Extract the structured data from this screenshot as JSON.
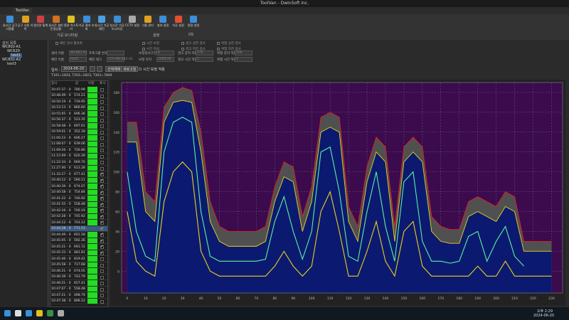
{
  "window": {
    "title": "ToolVan - DwinSoft Inc.",
    "tab": "ToolVan"
  },
  "toolbar": {
    "buttons": [
      "실시간 공구 사용률",
      "공구 사용 이력",
      "생산량 통계",
      "실시간 설비 운영상황",
      "알람 히스토리",
      "가공 결과 조회",
      "실시간 가공 패턴",
      "실시간 가공 모니터링",
      "CCTV 설정",
      "그룹 관리",
      "설비 설정",
      "가공 설정",
      "알람 설정"
    ],
    "groups": [
      "가공 모니터링",
      "설정",
      "OS"
    ]
  },
  "tree": {
    "title": "설비 목록",
    "items": [
      "WC802-A1",
      "WC620",
      "test1",
      "WC802-A2",
      "test3"
    ]
  },
  "form": {
    "checks": [
      "패턴 검사 활성화",
      "시간 보정",
      "경고 상한 검사",
      "위험 상한 검사",
      "시간 검사",
      "경고 하한 검사",
      "위험 하한 검사"
    ],
    "fields": [
      {
        "label": "설비 이름",
        "value": "WC802-A1"
      },
      {
        "label": "프로그램 번호"
      },
      {
        "label": "패턴 이름",
        "value": "test1"
      },
      {
        "label": "패턴 태그",
        "value": "CCH-WC802-A1"
      },
      {
        "label": "보정검사구간",
        "value": "0"
      },
      {
        "label": "경고 감지 하한",
        "value": "170"
      },
      {
        "label": "위험 감지 하한",
        "value": "200"
      },
      {
        "label": "보정 유지",
        "value": "1000.00"
      },
      {
        "label": "경고 시간 하한",
        "value": "1"
      },
      {
        "label": "위험 시간 하한",
        "value": "1"
      }
    ]
  },
  "filter": {
    "date_label": "일자 :",
    "date": "2024-06-20",
    "buttons": [
      "선택해제",
      "새로고침"
    ],
    "option": "시간 보정 적용"
  },
  "info": "T101=1824, T202=1823, T303=7849",
  "table": {
    "headers": [
      "일시",
      "값",
      "보정",
      "표시"
    ],
    "check_mark": "✓",
    "checked_rows": [
      14,
      15,
      16,
      17,
      18,
      19,
      20,
      21,
      22,
      23,
      24,
      25,
      26,
      27
    ],
    "rows": [
      [
        "10:47:37 - 0",
        "780.99"
      ],
      [
        "10:48:49 - 0",
        "574.21"
      ],
      [
        "10:50:19 - 0",
        "719.95"
      ],
      [
        "10:53:13 - 0",
        "866.60"
      ],
      [
        "10:55:05 - 0",
        "696.36"
      ],
      [
        "10:56:37 - 0",
        "523.35"
      ],
      [
        "10:58:48 - 0",
        "697.61"
      ],
      [
        "10:59:01 - 0",
        "352.18"
      ],
      [
        "11:00:23 - 0",
        "606.27"
      ],
      [
        "11:08:07 - 0",
        "639.06"
      ],
      [
        "11:09:26 - 0",
        "726.86"
      ],
      [
        "11:15:09 - 0",
        "620.39"
      ],
      [
        "11:22:33 - 0",
        "669.70"
      ],
      [
        "11:27:40 - 0",
        "613.28"
      ],
      [
        "11:32:27 - 0",
        "677.41"
      ],
      [
        "10:40:12 - 0",
        "590.11"
      ],
      [
        "10:40:39 - 0",
        "674.07"
      ],
      [
        "10:40:58 - 0",
        "754.84"
      ],
      [
        "10:41:22 - 0",
        "746.92"
      ],
      [
        "10:41:55 - 0",
        "558.48"
      ],
      [
        "10:42:16 - 0",
        "700.19"
      ],
      [
        "10:42:28 - 0",
        "745.92"
      ],
      [
        "10:44:12 - 0",
        "703.12"
      ],
      [
        "10:44:28 - 0",
        "771.53"
      ],
      [
        "10:44:49 - 0",
        "601.58"
      ],
      [
        "10:45:05 - 0",
        "592.36"
      ],
      [
        "10:45:21 - 0",
        "691.72"
      ],
      [
        "10:45:33 - 0",
        "481.81"
      ],
      [
        "10:45:46 - 0",
        "819.42"
      ],
      [
        "10:45:58 - 0",
        "717.68"
      ],
      [
        "10:46:21 - 0",
        "674.05"
      ],
      [
        "10:46:39 - 0",
        "743.79"
      ],
      [
        "10:46:51 - 0",
        "657.41"
      ],
      [
        "10:47:07 - 0",
        "558.48"
      ],
      [
        "10:47:21 - 0",
        "498.79"
      ],
      [
        "10:47:38 - 0",
        "896.12"
      ]
    ]
  },
  "chart_data": {
    "type": "line",
    "background": "#3b0b4e",
    "grid": true,
    "x": [
      0,
      5,
      10,
      15,
      20,
      25,
      30,
      35,
      40,
      45,
      50,
      55,
      60,
      65,
      70,
      75,
      80,
      85,
      90,
      95,
      100,
      105,
      110,
      115,
      120,
      125,
      130,
      135,
      140,
      145,
      150,
      155,
      160,
      165,
      170,
      175,
      180,
      185,
      190,
      195,
      200,
      205,
      210,
      215,
      220,
      225,
      230
    ],
    "xlim": [
      -3,
      236
    ],
    "xticks": [
      0,
      10,
      20,
      30,
      40,
      50,
      60,
      70,
      80,
      90,
      100,
      110,
      120,
      130,
      140,
      150,
      160,
      170,
      180,
      190,
      200,
      210,
      220,
      230
    ],
    "ylim": [
      -22,
      190
    ],
    "yticks": [
      0,
      20,
      40,
      60,
      80,
      100,
      120,
      140,
      160,
      180
    ],
    "series": [
      {
        "color": "#e02020",
        "fill": "#505050",
        "values": [
          150,
          150,
          80,
          70,
          165,
          180,
          185,
          182,
          140,
          70,
          45,
          40,
          40,
          40,
          40,
          45,
          85,
          110,
          105,
          55,
          85,
          155,
          160,
          155,
          65,
          45,
          105,
          135,
          125,
          45,
          125,
          135,
          125,
          55,
          45,
          42,
          42,
          70,
          75,
          70,
          65,
          80,
          75,
          30,
          30,
          30,
          30
        ]
      },
      {
        "color": "#e8d020",
        "fill": "#0b1a70",
        "values": [
          130,
          130,
          60,
          50,
          150,
          170,
          172,
          170,
          120,
          50,
          30,
          25,
          25,
          25,
          25,
          30,
          70,
          95,
          90,
          40,
          70,
          140,
          145,
          140,
          50,
          30,
          90,
          120,
          110,
          30,
          110,
          120,
          110,
          40,
          30,
          28,
          28,
          55,
          60,
          55,
          50,
          65,
          60,
          20,
          20,
          20,
          20
        ]
      },
      {
        "color": "#5cf0a0",
        "values": [
          100,
          40,
          15,
          10,
          120,
          150,
          155,
          150,
          60,
          15,
          10,
          10,
          10,
          10,
          10,
          12,
          50,
          75,
          40,
          12,
          40,
          120,
          125,
          80,
          15,
          10,
          60,
          100,
          45,
          10,
          90,
          100,
          30,
          10,
          10,
          8,
          10,
          35,
          40,
          10,
          30,
          45,
          15,
          5,
          null,
          null,
          null
        ]
      },
      {
        "color": "#e8d020",
        "values": [
          60,
          10,
          0,
          -5,
          70,
          100,
          110,
          100,
          20,
          0,
          -5,
          -5,
          -5,
          -5,
          -5,
          -5,
          5,
          20,
          5,
          -5,
          5,
          60,
          80,
          40,
          -5,
          -5,
          20,
          50,
          10,
          -5,
          40,
          50,
          5,
          -5,
          -5,
          -5,
          -5,
          -5,
          5,
          -5,
          -5,
          10,
          -5,
          -5,
          -5,
          -5,
          -5
        ]
      }
    ]
  },
  "taskbar": {
    "time": "오후 2:29",
    "date": "2024-06-20"
  }
}
